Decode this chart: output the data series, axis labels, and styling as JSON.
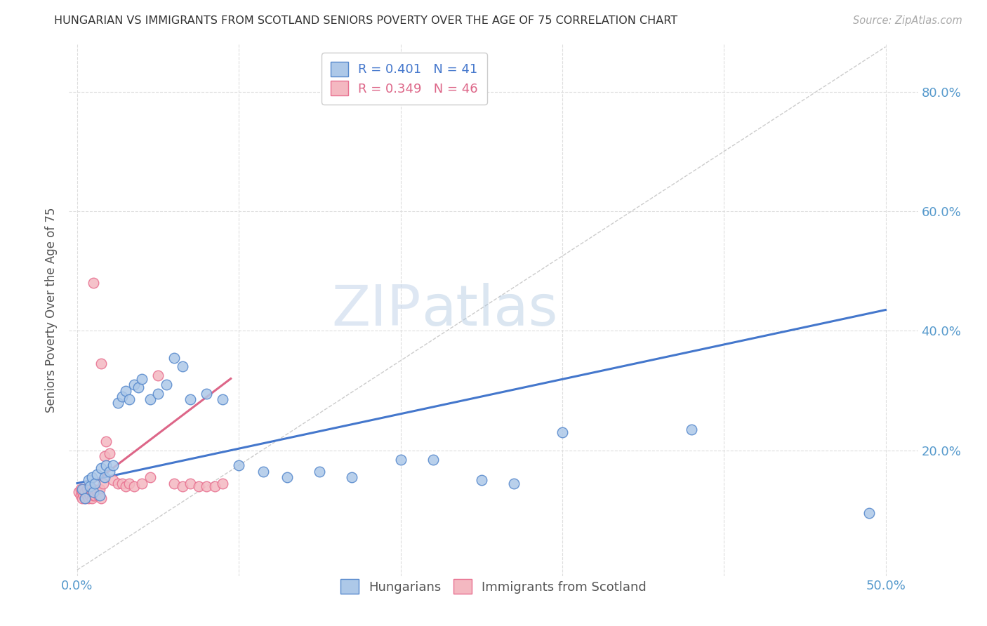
{
  "title": "HUNGARIAN VS IMMIGRANTS FROM SCOTLAND SENIORS POVERTY OVER THE AGE OF 75 CORRELATION CHART",
  "source": "Source: ZipAtlas.com",
  "xlabel_ticks_show": [
    "0.0%",
    "50.0%"
  ],
  "xlabel_ticks_vals": [
    0.0,
    0.5
  ],
  "ylabel_ticks": [
    "20.0%",
    "40.0%",
    "60.0%",
    "80.0%"
  ],
  "ylabel_vals": [
    0.2,
    0.4,
    0.6,
    0.8
  ],
  "grid_x_vals": [
    0.0,
    0.1,
    0.2,
    0.3,
    0.4,
    0.5
  ],
  "xlim": [
    -0.005,
    0.52
  ],
  "ylim": [
    -0.01,
    0.88
  ],
  "ylabel": "Seniors Poverty Over the Age of 75",
  "legend_blue_r": "R = 0.401",
  "legend_blue_n": "N = 41",
  "legend_pink_r": "R = 0.349",
  "legend_pink_n": "N = 46",
  "blue_color": "#adc8e8",
  "pink_color": "#f4b8c1",
  "blue_edge_color": "#5588cc",
  "pink_edge_color": "#e87090",
  "blue_line_color": "#4477cc",
  "pink_line_color": "#dd6688",
  "axis_tick_color": "#5599cc",
  "watermark_zip": "ZIP",
  "watermark_atlas": "atlas",
  "blue_scatter_x": [
    0.003,
    0.005,
    0.007,
    0.008,
    0.009,
    0.01,
    0.011,
    0.012,
    0.014,
    0.015,
    0.017,
    0.018,
    0.02,
    0.022,
    0.025,
    0.028,
    0.03,
    0.032,
    0.035,
    0.038,
    0.04,
    0.045,
    0.05,
    0.055,
    0.06,
    0.065,
    0.07,
    0.08,
    0.09,
    0.1,
    0.115,
    0.13,
    0.15,
    0.17,
    0.2,
    0.22,
    0.25,
    0.27,
    0.3,
    0.38,
    0.49
  ],
  "blue_scatter_y": [
    0.135,
    0.12,
    0.15,
    0.14,
    0.155,
    0.13,
    0.145,
    0.16,
    0.125,
    0.17,
    0.155,
    0.175,
    0.165,
    0.175,
    0.28,
    0.29,
    0.3,
    0.285,
    0.31,
    0.305,
    0.32,
    0.285,
    0.295,
    0.31,
    0.355,
    0.34,
    0.285,
    0.295,
    0.285,
    0.175,
    0.165,
    0.155,
    0.165,
    0.155,
    0.185,
    0.185,
    0.15,
    0.145,
    0.23,
    0.235,
    0.095
  ],
  "pink_scatter_x": [
    0.001,
    0.002,
    0.002,
    0.003,
    0.003,
    0.004,
    0.004,
    0.005,
    0.005,
    0.006,
    0.006,
    0.007,
    0.007,
    0.008,
    0.008,
    0.009,
    0.009,
    0.01,
    0.01,
    0.011,
    0.012,
    0.013,
    0.014,
    0.015,
    0.016,
    0.017,
    0.018,
    0.02,
    0.022,
    0.025,
    0.028,
    0.03,
    0.032,
    0.035,
    0.04,
    0.045,
    0.05,
    0.06,
    0.065,
    0.07,
    0.075,
    0.08,
    0.085,
    0.09,
    0.01,
    0.015
  ],
  "pink_scatter_y": [
    0.13,
    0.125,
    0.135,
    0.12,
    0.13,
    0.125,
    0.135,
    0.12,
    0.13,
    0.125,
    0.135,
    0.12,
    0.13,
    0.125,
    0.135,
    0.12,
    0.13,
    0.125,
    0.135,
    0.125,
    0.13,
    0.125,
    0.135,
    0.12,
    0.145,
    0.19,
    0.215,
    0.195,
    0.15,
    0.145,
    0.145,
    0.14,
    0.145,
    0.14,
    0.145,
    0.155,
    0.325,
    0.145,
    0.14,
    0.145,
    0.14,
    0.14,
    0.14,
    0.145,
    0.48,
    0.345
  ],
  "blue_regline_x": [
    0.0,
    0.5
  ],
  "blue_regline_y": [
    0.145,
    0.435
  ],
  "pink_regline_x": [
    0.0,
    0.095
  ],
  "pink_regline_y": [
    0.125,
    0.32
  ],
  "diag_line_x": [
    0.0,
    0.5
  ],
  "diag_line_y": [
    0.0,
    0.875
  ]
}
